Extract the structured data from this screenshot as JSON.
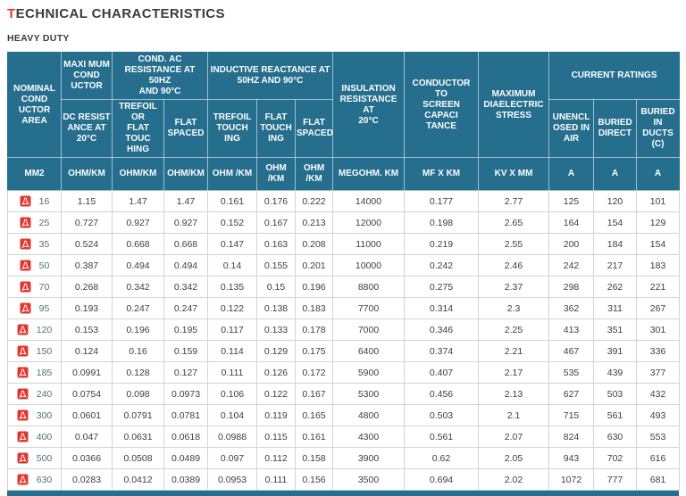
{
  "page": {
    "title_first_letter": "T",
    "title_rest": "ECHNICAL CHARACTERISTICS",
    "subtitle": "HEAVY DUTY"
  },
  "colors": {
    "header_bg": "#266e8d",
    "accent_red": "#e8392f",
    "pdf_icon_red": "#e0372e",
    "area_text": "#4c7183",
    "body_text": "#3e3e3e",
    "body_border": "#d3d3d3"
  },
  "table": {
    "groups": {
      "nominal_area": "NOMINAL\nCOND\nUCTOR\nAREA",
      "maximum_conductor": "MAXI MUM\nCOND\nUCTOR",
      "cond_ac_resistance": "COND. AC\nRESISTANCE AT 50HZ\nAND 90°C",
      "inductive_reactance": "INDUCTIVE REACTANCE AT\n50HZ AND 90°C",
      "insulation_resistance": "INSULATION\nRESISTANCE AT\n20°C",
      "conductor_screen_capacitance": "CONDUCTOR TO\nSCREEN CAPACI\nTANCE",
      "max_dielectric_stress": "MAXIMUM\nDIAELECTRIC\nSTRESS",
      "current_ratings": "CURRENT RATINGS"
    },
    "subheaders": {
      "dc_resistance": "DC RESIST\nANCE AT\n20°C",
      "trefoil_or_flat_touching": "TREFOIL OR\nFLAT TOUC\nHING",
      "flat_spaced_ac": "FLAT\nSPACED",
      "trefoil_touching": "TREFOIL\nTOUCH\nING",
      "flat_touching": "FLAT\nTOUCH\nING",
      "flat_spaced_reactance": "FLAT\nSPACED",
      "unenclosed_in_air": "UNENCL\nOSED IN\nAIR",
      "buried_direct": "BURIED\nDIRECT",
      "buried_in_ducts": "BURIED\nIN\nDUCTS\n(C)"
    },
    "units": [
      "MM2",
      "OHM/KM",
      "OHM/KM",
      "OHM/KM",
      "OHM /KM",
      "OHM\n/KM",
      "OHM\n/KM",
      "MEGOHM. KM",
      "MF X KM",
      "KV X MM",
      "A",
      "A",
      "A"
    ],
    "rows": [
      {
        "area": "16",
        "values": [
          "1.15",
          "1.47",
          "1.47",
          "0.161",
          "0.176",
          "0.222",
          "14000",
          "0.177",
          "2.77",
          "125",
          "120",
          "101"
        ]
      },
      {
        "area": "25",
        "values": [
          "0.727",
          "0.927",
          "0.927",
          "0.152",
          "0.167",
          "0.213",
          "12000",
          "0.198",
          "2.65",
          "164",
          "154",
          "129"
        ]
      },
      {
        "area": "35",
        "values": [
          "0.524",
          "0.668",
          "0.668",
          "0.147",
          "0.163",
          "0.208",
          "11000",
          "0.219",
          "2.55",
          "200",
          "184",
          "154"
        ]
      },
      {
        "area": "50",
        "values": [
          "0.387",
          "0.494",
          "0.494",
          "0.14",
          "0.155",
          "0.201",
          "10000",
          "0.242",
          "2.46",
          "242",
          "217",
          "183"
        ]
      },
      {
        "area": "70",
        "values": [
          "0.268",
          "0.342",
          "0.342",
          "0.135",
          "0.15",
          "0.196",
          "8800",
          "0.275",
          "2.37",
          "298",
          "262",
          "221"
        ]
      },
      {
        "area": "95",
        "values": [
          "0.193",
          "0.247",
          "0.247",
          "0.122",
          "0.138",
          "0.183",
          "7700",
          "0.314",
          "2.3",
          "362",
          "311",
          "267"
        ]
      },
      {
        "area": "120",
        "values": [
          "0.153",
          "0.196",
          "0.195",
          "0.117",
          "0.133",
          "0.178",
          "7000",
          "0.346",
          "2.25",
          "413",
          "351",
          "301"
        ]
      },
      {
        "area": "150",
        "values": [
          "0.124",
          "0.16",
          "0.159",
          "0.114",
          "0.129",
          "0.175",
          "6400",
          "0.374",
          "2.21",
          "467",
          "391",
          "336"
        ]
      },
      {
        "area": "185",
        "values": [
          "0.0991",
          "0.128",
          "0.127",
          "0.111",
          "0.126",
          "0.172",
          "5900",
          "0.407",
          "2.17",
          "535",
          "439",
          "377"
        ]
      },
      {
        "area": "240",
        "values": [
          "0.0754",
          "0.098",
          "0.0973",
          "0.106",
          "0.122",
          "0.167",
          "5300",
          "0.456",
          "2.13",
          "627",
          "503",
          "432"
        ]
      },
      {
        "area": "300",
        "values": [
          "0.0601",
          "0.0791",
          "0.0781",
          "0.104",
          "0.119",
          "0.165",
          "4800",
          "0.503",
          "2.1",
          "715",
          "561",
          "493"
        ]
      },
      {
        "area": "400",
        "values": [
          "0.047",
          "0.0631",
          "0.0618",
          "0.0988",
          "0.115",
          "0.161",
          "4300",
          "0.561",
          "2.07",
          "824",
          "630",
          "553"
        ]
      },
      {
        "area": "500",
        "values": [
          "0.0366",
          "0.0508",
          "0.0489",
          "0.097",
          "0.112",
          "0.158",
          "3900",
          "0.62",
          "2.05",
          "943",
          "702",
          "616"
        ]
      },
      {
        "area": "630",
        "values": [
          "0.0283",
          "0.0412",
          "0.0389",
          "0.0953",
          "0.111",
          "0.156",
          "3500",
          "0.694",
          "2.02",
          "1072",
          "777",
          "681"
        ]
      }
    ]
  },
  "chart_data": {
    "type": "table",
    "title": "TECHNICAL CHARACTERISTICS",
    "subtitle": "HEAVY DUTY",
    "columns": [
      "NOMINAL CONDUCTOR AREA (MM2)",
      "MAXIMUM CONDUCTOR DC RESISTANCE AT 20°C (OHM/KM)",
      "COND. AC RESISTANCE AT 50HZ AND 90°C - TREFOIL OR FLAT TOUCHING (OHM/KM)",
      "COND. AC RESISTANCE AT 50HZ AND 90°C - FLAT SPACED (OHM/KM)",
      "INDUCTIVE REACTANCE AT 50HZ AND 90°C - TREFOIL TOUCHING (OHM/KM)",
      "INDUCTIVE REACTANCE AT 50HZ AND 90°C - FLAT TOUCHING (OHM/KM)",
      "INDUCTIVE REACTANCE AT 50HZ AND 90°C - FLAT SPACED (OHM/KM)",
      "INSULATION RESISTANCE AT 20°C (MEGOHM. KM)",
      "CONDUCTOR TO SCREEN CAPACITANCE (MF X KM)",
      "MAXIMUM DIAELECTRIC STRESS (KV X MM)",
      "CURRENT RATINGS - UNENCLOSED IN AIR (A)",
      "CURRENT RATINGS - BURIED DIRECT (A)",
      "CURRENT RATINGS - BURIED IN DUCTS (C) (A)"
    ],
    "rows": [
      [
        16,
        1.15,
        1.47,
        1.47,
        0.161,
        0.176,
        0.222,
        14000,
        0.177,
        2.77,
        125,
        120,
        101
      ],
      [
        25,
        0.727,
        0.927,
        0.927,
        0.152,
        0.167,
        0.213,
        12000,
        0.198,
        2.65,
        164,
        154,
        129
      ],
      [
        35,
        0.524,
        0.668,
        0.668,
        0.147,
        0.163,
        0.208,
        11000,
        0.219,
        2.55,
        200,
        184,
        154
      ],
      [
        50,
        0.387,
        0.494,
        0.494,
        0.14,
        0.155,
        0.201,
        10000,
        0.242,
        2.46,
        242,
        217,
        183
      ],
      [
        70,
        0.268,
        0.342,
        0.342,
        0.135,
        0.15,
        0.196,
        8800,
        0.275,
        2.37,
        298,
        262,
        221
      ],
      [
        95,
        0.193,
        0.247,
        0.247,
        0.122,
        0.138,
        0.183,
        7700,
        0.314,
        2.3,
        362,
        311,
        267
      ],
      [
        120,
        0.153,
        0.196,
        0.195,
        0.117,
        0.133,
        0.178,
        7000,
        0.346,
        2.25,
        413,
        351,
        301
      ],
      [
        150,
        0.124,
        0.16,
        0.159,
        0.114,
        0.129,
        0.175,
        6400,
        0.374,
        2.21,
        467,
        391,
        336
      ],
      [
        185,
        0.0991,
        0.128,
        0.127,
        0.111,
        0.126,
        0.172,
        5900,
        0.407,
        2.17,
        535,
        439,
        377
      ],
      [
        240,
        0.0754,
        0.098,
        0.0973,
        0.106,
        0.122,
        0.167,
        5300,
        0.456,
        2.13,
        627,
        503,
        432
      ],
      [
        300,
        0.0601,
        0.0791,
        0.0781,
        0.104,
        0.119,
        0.165,
        4800,
        0.503,
        2.1,
        715,
        561,
        493
      ],
      [
        400,
        0.047,
        0.0631,
        0.0618,
        0.0988,
        0.115,
        0.161,
        4300,
        0.561,
        2.07,
        824,
        630,
        553
      ],
      [
        500,
        0.0366,
        0.0508,
        0.0489,
        0.097,
        0.112,
        0.158,
        3900,
        0.62,
        2.05,
        943,
        702,
        616
      ],
      [
        630,
        0.0283,
        0.0412,
        0.0389,
        0.0953,
        0.111,
        0.156,
        3500,
        0.694,
        2.02,
        1072,
        777,
        681
      ]
    ]
  }
}
